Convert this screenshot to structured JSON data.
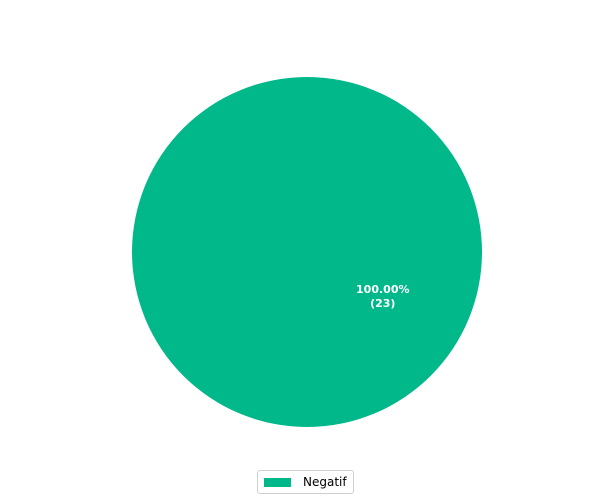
{
  "chart_data": {
    "type": "pie",
    "categories": [
      "Negatif"
    ],
    "values": [
      23
    ],
    "percentages": [
      100.0
    ],
    "labels": [
      "100.00%\n(23)"
    ],
    "colors": [
      "#00b88a"
    ],
    "legend_placement": "bottom-center",
    "title": ""
  },
  "legend": {
    "items": [
      {
        "label": "Negatif",
        "color": "#00b88a"
      }
    ]
  }
}
